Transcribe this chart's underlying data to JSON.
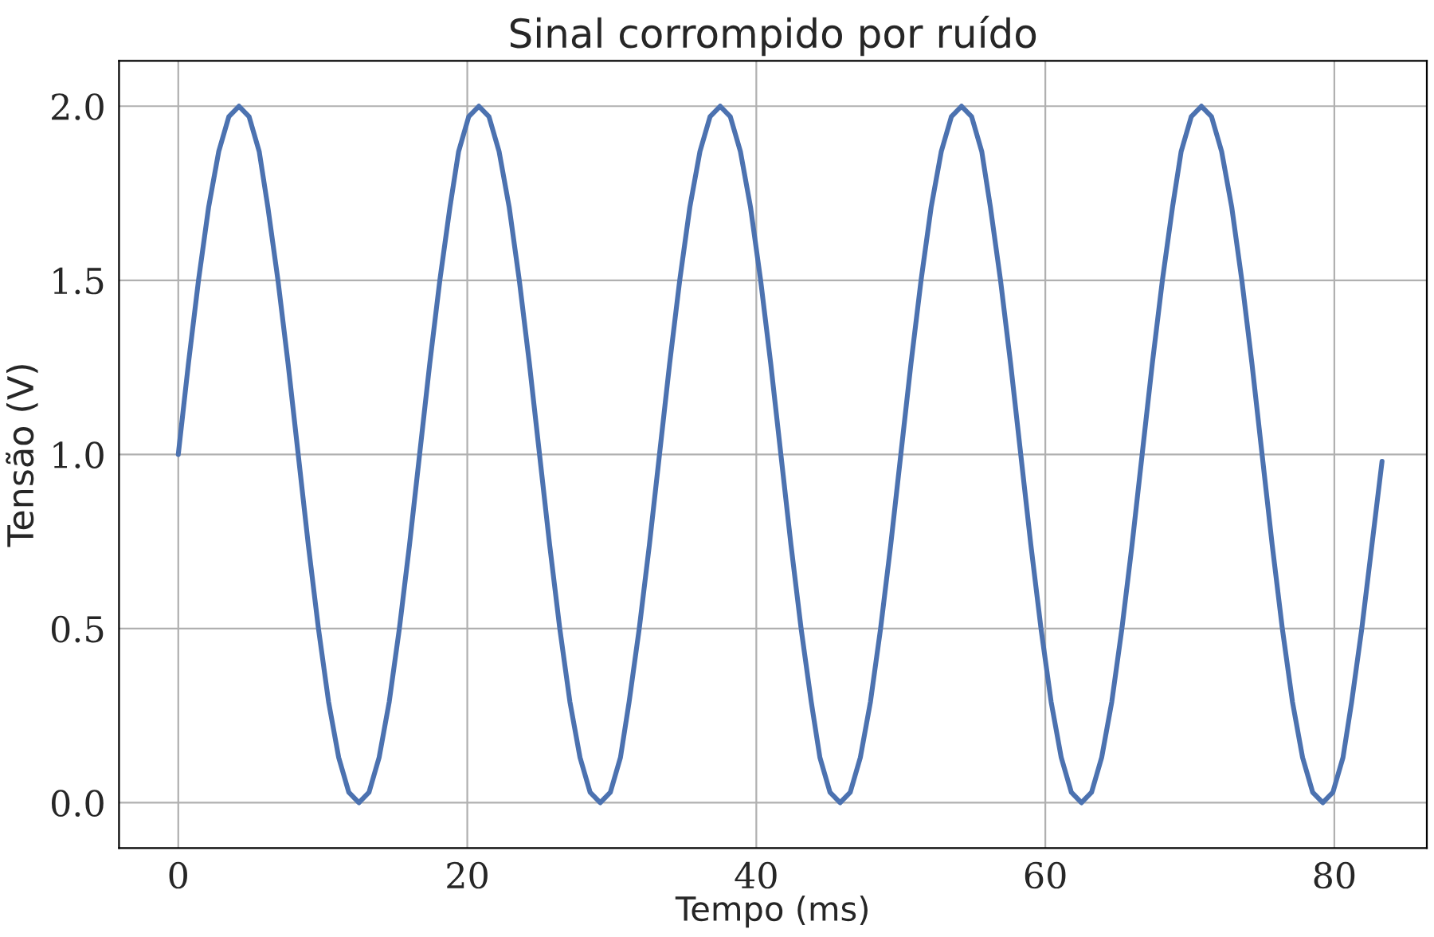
{
  "chart_data": {
    "type": "line",
    "title": "Sinal corrompido por ruído",
    "xlabel": "Tempo (ms)",
    "ylabel": "Tensão (V)",
    "x": [
      0,
      0.7,
      1.4,
      2.1,
      2.8,
      3.5,
      4.2,
      4.9,
      5.6,
      6.2,
      6.9,
      7.6,
      8.3,
      9.0,
      9.7,
      10.4,
      11.1,
      11.8,
      12.5,
      13.2,
      13.9,
      14.6,
      15.3,
      16.0,
      16.7,
      17.4,
      18.1,
      18.8,
      19.4,
      20.1,
      20.8,
      21.5,
      22.2,
      22.9,
      23.6,
      24.3,
      25.0,
      25.7,
      26.4,
      27.1,
      27.8,
      28.5,
      29.2,
      29.9,
      30.6,
      31.2,
      31.9,
      32.6,
      33.3,
      34.0,
      34.7,
      35.4,
      36.1,
      36.8,
      37.5,
      38.2,
      38.9,
      39.6,
      40.3,
      41.0,
      41.7,
      42.4,
      43.1,
      43.8,
      44.4,
      45.1,
      45.8,
      46.5,
      47.2,
      47.9,
      48.6,
      49.3,
      50.0,
      50.7,
      51.4,
      52.1,
      52.8,
      53.5,
      54.2,
      54.9,
      55.6,
      56.2,
      56.9,
      57.6,
      58.3,
      59.0,
      59.7,
      60.4,
      61.1,
      61.8,
      62.5,
      63.2,
      63.9,
      64.6,
      65.3,
      66.0,
      66.7,
      67.4,
      68.1,
      68.8,
      69.4,
      70.1,
      70.8,
      71.5,
      72.2,
      72.9,
      73.6,
      74.3,
      75.0,
      75.7,
      76.4,
      77.1,
      77.8,
      78.5,
      79.2,
      79.9,
      80.6,
      81.2,
      81.9,
      82.6,
      83.3
    ],
    "series": [
      {
        "color": "#4c72b0",
        "values": [
          1.0,
          1.26,
          1.5,
          1.71,
          1.87,
          1.97,
          2.0,
          1.97,
          1.87,
          1.71,
          1.5,
          1.26,
          1.0,
          0.74,
          0.5,
          0.29,
          0.13,
          0.03,
          0.0,
          0.03,
          0.13,
          0.29,
          0.5,
          0.74,
          1.0,
          1.26,
          1.5,
          1.71,
          1.87,
          1.97,
          2.0,
          1.97,
          1.87,
          1.71,
          1.5,
          1.26,
          1.0,
          0.74,
          0.5,
          0.29,
          0.13,
          0.03,
          0.0,
          0.03,
          0.13,
          0.29,
          0.5,
          0.74,
          1.0,
          1.26,
          1.5,
          1.71,
          1.87,
          1.97,
          2.0,
          1.97,
          1.87,
          1.71,
          1.5,
          1.26,
          1.0,
          0.74,
          0.5,
          0.29,
          0.13,
          0.03,
          0.0,
          0.03,
          0.13,
          0.29,
          0.5,
          0.74,
          1.0,
          1.26,
          1.5,
          1.71,
          1.87,
          1.97,
          2.0,
          1.97,
          1.87,
          1.71,
          1.5,
          1.26,
          1.0,
          0.74,
          0.5,
          0.29,
          0.13,
          0.03,
          0.0,
          0.03,
          0.13,
          0.29,
          0.5,
          0.74,
          1.0,
          1.26,
          1.5,
          1.71,
          1.87,
          1.97,
          2.0,
          1.97,
          1.87,
          1.71,
          1.5,
          1.26,
          1.0,
          0.74,
          0.5,
          0.29,
          0.13,
          0.03,
          0.0,
          0.03,
          0.13,
          0.29,
          0.5,
          0.74,
          0.98
        ]
      }
    ],
    "xlim": [
      -4.1,
      86.4
    ],
    "ylim": [
      -0.13,
      2.13
    ],
    "xticks": [
      0,
      20,
      40,
      60,
      80
    ],
    "yticks": [
      {
        "value": 0,
        "label": "0.0"
      },
      {
        "value": 0.5,
        "label": "0.5"
      },
      {
        "value": 1,
        "label": "1.0"
      },
      {
        "value": 1.5,
        "label": "1.5"
      },
      {
        "value": 2,
        "label": "2.0"
      }
    ],
    "grid": true,
    "legend": false,
    "marker": "none",
    "line_style": "solid"
  }
}
